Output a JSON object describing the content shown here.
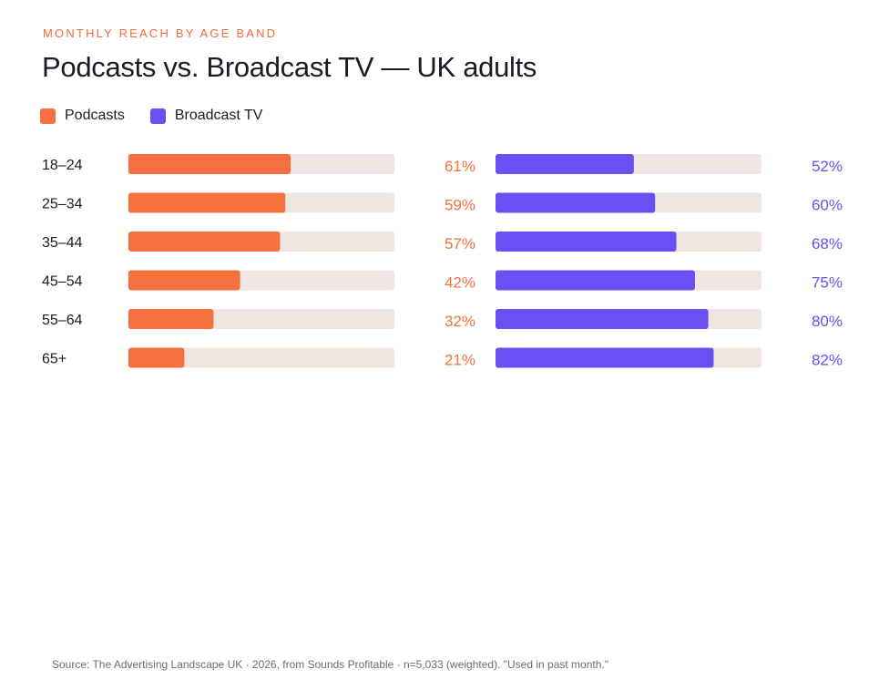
{
  "header": {
    "kicker": "MONTHLY REACH BY AGE BAND",
    "title": "Podcasts vs. Broadcast TV — UK adults"
  },
  "colors": {
    "podcasts": "#f5703f",
    "broadcast_tv": "#6a4ff2",
    "track": "#f0e5e1",
    "label": "#1c1c24"
  },
  "chart_data": {
    "type": "bar",
    "orientation": "horizontal",
    "categories": [
      "18–24",
      "25–34",
      "35–44",
      "45–54",
      "55–64",
      "65+"
    ],
    "series": [
      {
        "name": "Podcasts",
        "values": [
          61,
          59,
          57,
          42,
          32,
          21
        ],
        "value_labels": [
          "61%",
          "59%",
          "57%",
          "42%",
          "32%",
          "21%"
        ]
      },
      {
        "name": "Broadcast TV",
        "values": [
          52,
          60,
          68,
          75,
          80,
          82
        ],
        "value_labels": [
          "52%",
          "60%",
          "68%",
          "75%",
          "80%",
          "82%"
        ]
      }
    ],
    "xlim": [
      0,
      100
    ],
    "legend": "top-left",
    "grid": false
  },
  "footer": {
    "source": "Source: The Advertising Landscape UK · 2026, from Sounds Profitable · n=5,033 (weighted). \"Used in past month.\""
  }
}
